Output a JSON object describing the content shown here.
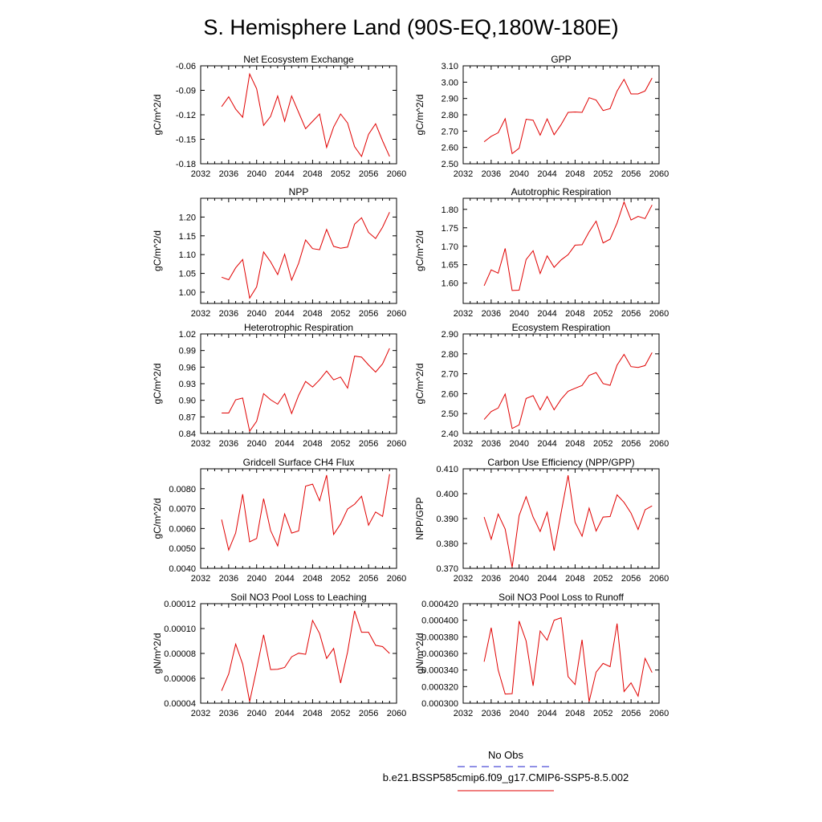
{
  "figure": {
    "title": "S. Hemisphere Land (90S-EQ,180W-180E)",
    "legend": {
      "obs_label": "No Obs",
      "obs_color": "#2222cc",
      "model_label": "b.e21.BSSP585cmip6.f09_g17.CMIP6-SSP5-8.5.002",
      "model_color": "#e00000"
    }
  },
  "chart_data": [
    {
      "type": "line",
      "title": "Net Ecosystem Exchange",
      "ylabel": "gC/m^2/d",
      "xlim": [
        2032,
        2060
      ],
      "ylim": [
        -0.18,
        -0.06
      ],
      "xticks": [
        "2032",
        "2036",
        "2040",
        "2044",
        "2048",
        "2052",
        "2056",
        "2060"
      ],
      "yticks": [
        "-0.18",
        "-0.15",
        "-0.12",
        "-0.09",
        "-0.06"
      ],
      "x": [
        2035,
        2036,
        2037,
        2038,
        2039,
        2040,
        2041,
        2042,
        2043,
        2044,
        2045,
        2046,
        2047,
        2048,
        2049,
        2050,
        2051,
        2052,
        2053,
        2054,
        2055,
        2056,
        2057,
        2058,
        2059
      ],
      "series": [
        {
          "values": [
            -0.11,
            -0.098,
            -0.113,
            -0.123,
            -0.07,
            -0.088,
            -0.133,
            -0.122,
            -0.097,
            -0.128,
            -0.097,
            -0.117,
            -0.137,
            -0.128,
            -0.119,
            -0.16,
            -0.135,
            -0.119,
            -0.13,
            -0.159,
            -0.171,
            -0.144,
            -0.131,
            -0.152,
            -0.171
          ]
        }
      ]
    },
    {
      "type": "line",
      "title": "GPP",
      "ylabel": "gC/m^2/d",
      "xlim": [
        2032,
        2060
      ],
      "ylim": [
        2.5,
        3.1
      ],
      "xticks": [
        "2032",
        "2036",
        "2040",
        "2044",
        "2048",
        "2052",
        "2056",
        "2060"
      ],
      "yticks": [
        "2.50",
        "2.60",
        "2.70",
        "2.80",
        "2.90",
        "3.00",
        "3.10"
      ],
      "x": [
        2035,
        2036,
        2037,
        2038,
        2039,
        2040,
        2041,
        2042,
        2043,
        2044,
        2045,
        2046,
        2047,
        2048,
        2049,
        2050,
        2051,
        2052,
        2053,
        2054,
        2055,
        2056,
        2057,
        2058,
        2059
      ],
      "series": [
        {
          "values": [
            2.635,
            2.668,
            2.69,
            2.776,
            2.562,
            2.595,
            2.773,
            2.767,
            2.675,
            2.775,
            2.678,
            2.74,
            2.815,
            2.817,
            2.815,
            2.905,
            2.89,
            2.826,
            2.838,
            2.945,
            3.017,
            2.928,
            2.928,
            2.946,
            3.025
          ]
        }
      ]
    },
    {
      "type": "line",
      "title": "NPP",
      "ylabel": "gC/m^2/d",
      "xlim": [
        2032,
        2060
      ],
      "ylim": [
        0.97,
        1.25
      ],
      "xticks": [
        "2032",
        "2036",
        "2040",
        "2044",
        "2048",
        "2052",
        "2056",
        "2060"
      ],
      "yticks": [
        "1.00",
        "1.05",
        "1.10",
        "1.15",
        "1.20"
      ],
      "x": [
        2035,
        2036,
        2037,
        2038,
        2039,
        2040,
        2041,
        2042,
        2043,
        2044,
        2045,
        2046,
        2047,
        2048,
        2049,
        2050,
        2051,
        2052,
        2053,
        2054,
        2055,
        2056,
        2057,
        2058,
        2059
      ],
      "series": [
        {
          "values": [
            1.04,
            1.033,
            1.065,
            1.087,
            0.984,
            1.014,
            1.107,
            1.081,
            1.047,
            1.101,
            1.032,
            1.077,
            1.139,
            1.116,
            1.113,
            1.167,
            1.122,
            1.117,
            1.12,
            1.181,
            1.198,
            1.159,
            1.143,
            1.173,
            1.213
          ]
        }
      ]
    },
    {
      "type": "line",
      "title": "Autotrophic Respiration",
      "ylabel": "gC/m^2/d",
      "xlim": [
        2032,
        2060
      ],
      "ylim": [
        1.545,
        1.83
      ],
      "xticks": [
        "2032",
        "2036",
        "2040",
        "2044",
        "2048",
        "2052",
        "2056",
        "2060"
      ],
      "yticks": [
        "1.60",
        "1.65",
        "1.70",
        "1.75",
        "1.80"
      ],
      "x": [
        2035,
        2036,
        2037,
        2038,
        2039,
        2040,
        2041,
        2042,
        2043,
        2044,
        2045,
        2046,
        2047,
        2048,
        2049,
        2050,
        2051,
        2052,
        2053,
        2054,
        2055,
        2056,
        2057,
        2058,
        2059
      ],
      "series": [
        {
          "values": [
            1.593,
            1.636,
            1.627,
            1.694,
            1.58,
            1.581,
            1.664,
            1.688,
            1.626,
            1.674,
            1.643,
            1.663,
            1.677,
            1.703,
            1.704,
            1.739,
            1.768,
            1.709,
            1.719,
            1.763,
            1.82,
            1.771,
            1.781,
            1.775,
            1.812
          ]
        }
      ]
    },
    {
      "type": "line",
      "title": "Heterotrophic Respiration",
      "ylabel": "gC/m^2/d",
      "xlim": [
        2032,
        2060
      ],
      "ylim": [
        0.84,
        1.02
      ],
      "xticks": [
        "2032",
        "2036",
        "2040",
        "2044",
        "2048",
        "2052",
        "2056",
        "2060"
      ],
      "yticks": [
        "0.84",
        "0.87",
        "0.90",
        "0.93",
        "0.96",
        "0.99",
        "1.02"
      ],
      "x": [
        2035,
        2036,
        2037,
        2038,
        2039,
        2040,
        2041,
        2042,
        2043,
        2044,
        2045,
        2046,
        2047,
        2048,
        2049,
        2050,
        2051,
        2052,
        2053,
        2054,
        2055,
        2056,
        2057,
        2058,
        2059
      ],
      "series": [
        {
          "values": [
            0.877,
            0.877,
            0.901,
            0.904,
            0.844,
            0.862,
            0.912,
            0.901,
            0.893,
            0.912,
            0.876,
            0.909,
            0.934,
            0.924,
            0.937,
            0.953,
            0.937,
            0.942,
            0.922,
            0.98,
            0.978,
            0.964,
            0.951,
            0.966,
            0.994
          ]
        }
      ]
    },
    {
      "type": "line",
      "title": "Ecosystem Respiration",
      "ylabel": "gC/m^2/d",
      "xlim": [
        2032,
        2060
      ],
      "ylim": [
        2.4,
        2.9
      ],
      "xticks": [
        "2032",
        "2036",
        "2040",
        "2044",
        "2048",
        "2052",
        "2056",
        "2060"
      ],
      "yticks": [
        "2.40",
        "2.50",
        "2.60",
        "2.70",
        "2.80",
        "2.90"
      ],
      "x": [
        2035,
        2036,
        2037,
        2038,
        2039,
        2040,
        2041,
        2042,
        2043,
        2044,
        2045,
        2046,
        2047,
        2048,
        2049,
        2050,
        2051,
        2052,
        2053,
        2054,
        2055,
        2056,
        2057,
        2058,
        2059
      ],
      "series": [
        {
          "values": [
            2.47,
            2.51,
            2.528,
            2.598,
            2.425,
            2.443,
            2.576,
            2.59,
            2.519,
            2.586,
            2.519,
            2.572,
            2.612,
            2.627,
            2.641,
            2.692,
            2.706,
            2.651,
            2.642,
            2.743,
            2.797,
            2.736,
            2.732,
            2.741,
            2.806
          ]
        }
      ]
    },
    {
      "type": "line",
      "title": "Gridcell Surface CH4 Flux",
      "ylabel": "gC/m^2/d",
      "xlim": [
        2032,
        2060
      ],
      "ylim": [
        0.004,
        0.009
      ],
      "xticks": [
        "2032",
        "2036",
        "2040",
        "2044",
        "2048",
        "2052",
        "2056",
        "2060"
      ],
      "yticks": [
        "0.0040",
        "0.0050",
        "0.0060",
        "0.0070",
        "0.0080"
      ],
      "x": [
        2035,
        2036,
        2037,
        2038,
        2039,
        2040,
        2041,
        2042,
        2043,
        2044,
        2045,
        2046,
        2047,
        2048,
        2049,
        2050,
        2051,
        2052,
        2053,
        2054,
        2055,
        2056,
        2057,
        2058,
        2059
      ],
      "series": [
        {
          "values": [
            0.00645,
            0.00492,
            0.00578,
            0.00772,
            0.00533,
            0.0055,
            0.0075,
            0.0059,
            0.00513,
            0.00673,
            0.00577,
            0.00588,
            0.00813,
            0.00823,
            0.00739,
            0.00868,
            0.0057,
            0.00623,
            0.00698,
            0.00722,
            0.00762,
            0.00617,
            0.00683,
            0.00661,
            0.00873
          ]
        }
      ]
    },
    {
      "type": "line",
      "title": "Carbon Use Efficiency (NPP/GPP)",
      "ylabel": "NPP/GPP",
      "xlim": [
        2032,
        2060
      ],
      "ylim": [
        0.37,
        0.41
      ],
      "xticks": [
        "2032",
        "2036",
        "2040",
        "2044",
        "2048",
        "2052",
        "2056",
        "2060"
      ],
      "yticks": [
        "0.370",
        "0.380",
        "0.390",
        "0.400",
        "0.410"
      ],
      "x": [
        2035,
        2036,
        2037,
        2038,
        2039,
        2040,
        2041,
        2042,
        2043,
        2044,
        2045,
        2046,
        2047,
        2048,
        2049,
        2050,
        2051,
        2052,
        2053,
        2054,
        2055,
        2056,
        2057,
        2058,
        2059
      ],
      "series": [
        {
          "values": [
            0.3906,
            0.3817,
            0.3918,
            0.3858,
            0.3704,
            0.3912,
            0.3988,
            0.3906,
            0.3848,
            0.3925,
            0.3771,
            0.3924,
            0.4074,
            0.3885,
            0.3829,
            0.3942,
            0.385,
            0.3906,
            0.3908,
            0.3995,
            0.3965,
            0.3922,
            0.3856,
            0.3935,
            0.3951
          ]
        }
      ]
    },
    {
      "type": "line",
      "title": "Soil NO3 Pool Loss to Leaching",
      "ylabel": "gN/m^2/d",
      "xlim": [
        2032,
        2060
      ],
      "ylim": [
        4e-05,
        0.00012
      ],
      "xticks": [
        "2032",
        "2036",
        "2040",
        "2044",
        "2048",
        "2052",
        "2056",
        "2060"
      ],
      "yticks": [
        "0.00004",
        "0.00006",
        "0.00008",
        "0.00010",
        "0.00012"
      ],
      "x": [
        2035,
        2036,
        2037,
        2038,
        2039,
        2040,
        2041,
        2042,
        2043,
        2044,
        2045,
        2046,
        2047,
        2048,
        2049,
        2050,
        2051,
        2052,
        2053,
        2054,
        2055,
        2056,
        2057,
        2058,
        2059
      ],
      "series": [
        {
          "values": [
            5e-05,
            6.35e-05,
            8.75e-05,
            7.14e-05,
            4.13e-05,
            6.75e-05,
            9.5e-05,
            6.7e-05,
            6.73e-05,
            6.87e-05,
            7.73e-05,
            8.02e-05,
            7.93e-05,
            0.0001065,
            9.6e-05,
            7.6e-05,
            8.4e-05,
            5.62e-05,
            8.12e-05,
            0.0001142,
            9.7e-05,
            9.7e-05,
            8.65e-05,
            8.55e-05,
            8e-05
          ]
        }
      ]
    },
    {
      "type": "line",
      "title": "Soil NO3 Pool Loss to Runoff",
      "ylabel": "gN/m^2/d",
      "xlim": [
        2032,
        2060
      ],
      "ylim": [
        0.0003,
        0.00042
      ],
      "xticks": [
        "2032",
        "2036",
        "2040",
        "2044",
        "2048",
        "2052",
        "2056",
        "2060"
      ],
      "yticks": [
        "0.000300",
        "0.000320",
        "0.000340",
        "0.000360",
        "0.000380",
        "0.000400",
        "0.000420"
      ],
      "x": [
        2035,
        2036,
        2037,
        2038,
        2039,
        2040,
        2041,
        2042,
        2043,
        2044,
        2045,
        2046,
        2047,
        2048,
        2049,
        2050,
        2051,
        2052,
        2053,
        2054,
        2055,
        2056,
        2057,
        2058,
        2059
      ],
      "series": [
        {
          "values": [
            0.00035,
            0.000391,
            0.00034,
            0.000311,
            0.0003115,
            0.000399,
            0.000375,
            0.000321,
            0.000387,
            0.000376,
            0.0004,
            0.000403,
            0.000332,
            0.0003225,
            0.0003765,
            0.000302,
            0.0003375,
            0.000348,
            0.000344,
            0.000396,
            0.000314,
            0.0003245,
            0.0003085,
            0.000354,
            0.000337
          ]
        }
      ]
    }
  ]
}
